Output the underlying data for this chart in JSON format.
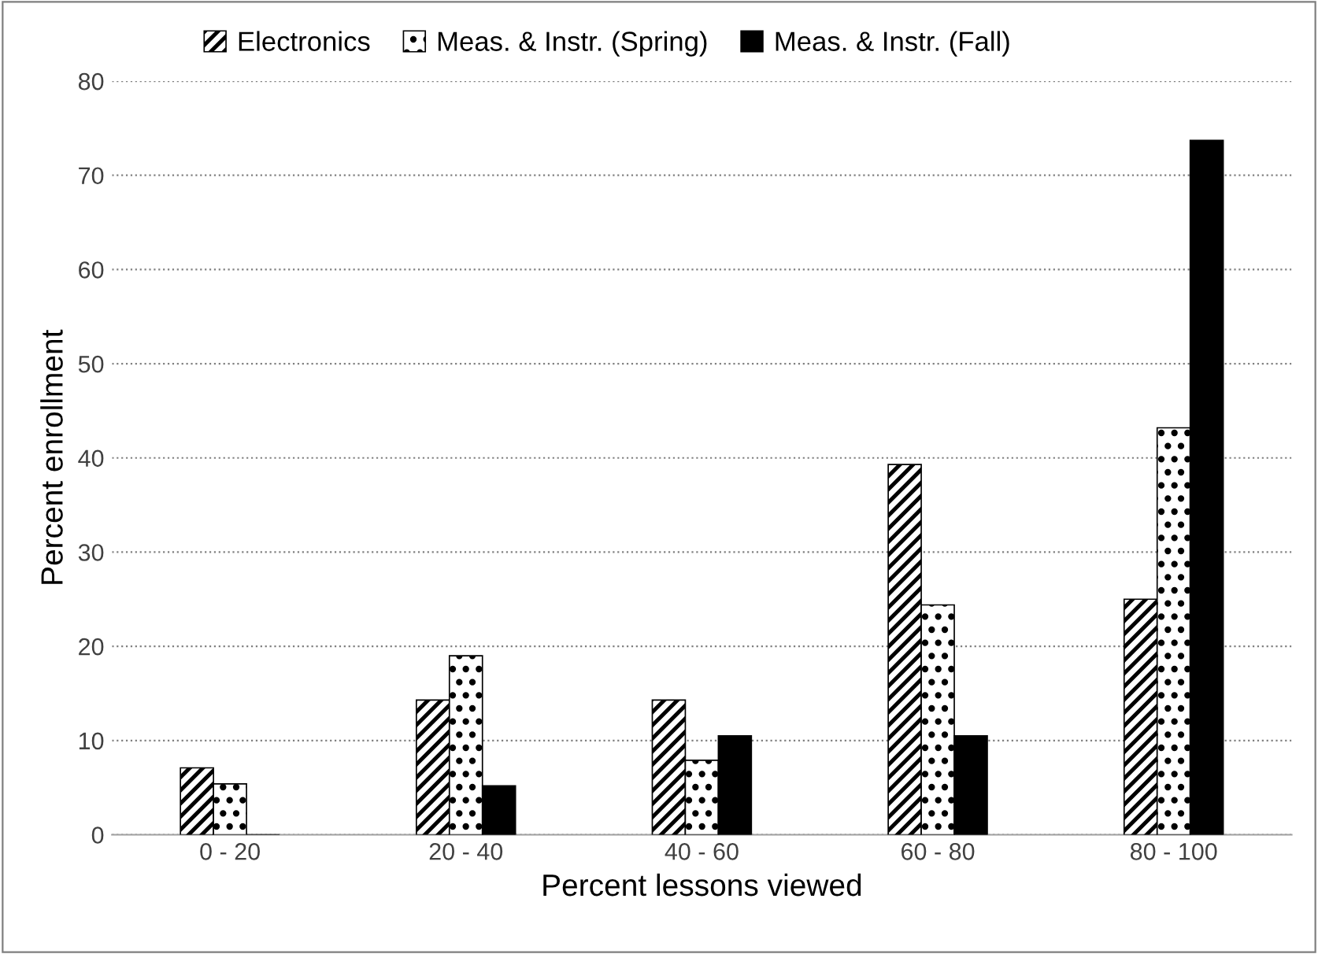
{
  "chart_data": {
    "type": "bar",
    "xlabel": "Percent lessons viewed",
    "ylabel": "Percent enrollment",
    "categories": [
      "0 - 20",
      "20 - 40",
      "40 - 60",
      "60 - 80",
      "80 - 100"
    ],
    "series": [
      {
        "name": "Electronics",
        "color": "#000000",
        "values": [
          7.1,
          14.3,
          14.3,
          39.3,
          25.0
        ]
      },
      {
        "name": "Meas. & Instr. (Spring)",
        "color": "#000000",
        "values": [
          5.4,
          19.0,
          7.9,
          24.4,
          43.2
        ]
      },
      {
        "name": "Meas. & Instr. (Fall)",
        "color": "#000000",
        "values": [
          0,
          5.2,
          10.5,
          10.5,
          73.7
        ]
      }
    ],
    "ylim": [
      0,
      80
    ],
    "yticks": [
      0,
      10,
      20,
      30,
      40,
      50,
      60,
      70,
      80
    ],
    "grid": "y",
    "legend": "top"
  }
}
